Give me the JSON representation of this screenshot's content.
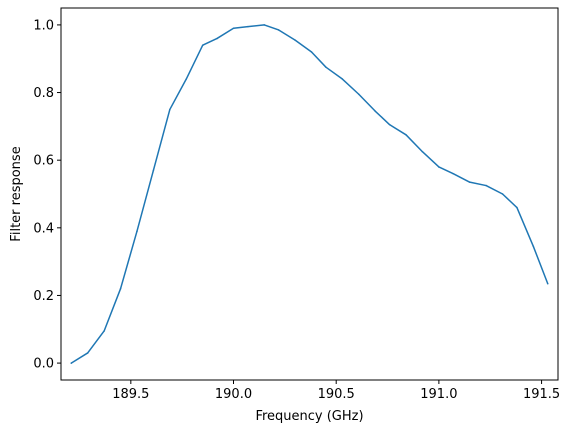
{
  "chart_data": {
    "type": "line",
    "title": "",
    "xlabel": "Frequency (GHz)",
    "ylabel": "Filter response",
    "xlim": [
      189.16,
      191.58
    ],
    "ylim": [
      -0.05,
      1.05
    ],
    "xticks": [
      189.5,
      190.0,
      190.5,
      191.0,
      191.5
    ],
    "xtick_labels": [
      "189.5",
      "190.0",
      "190.5",
      "191.0",
      "191.5"
    ],
    "yticks": [
      0.0,
      0.2,
      0.4,
      0.6,
      0.8,
      1.0
    ],
    "ytick_labels": [
      "0.0",
      "0.2",
      "0.4",
      "0.6",
      "0.8",
      "1.0"
    ],
    "grid": false,
    "series": [
      {
        "color": "#1f77b4",
        "x": [
          189.21,
          189.29,
          189.37,
          189.45,
          189.53,
          189.61,
          189.69,
          189.77,
          189.85,
          189.92,
          190.0,
          190.07,
          190.15,
          190.22,
          190.3,
          190.38,
          190.45,
          190.53,
          190.61,
          190.69,
          190.76,
          190.84,
          190.92,
          191.0,
          191.07,
          191.15,
          191.23,
          191.31,
          191.38,
          191.46,
          191.53
        ],
        "y": [
          0.0,
          0.03,
          0.095,
          0.22,
          0.39,
          0.57,
          0.75,
          0.84,
          0.94,
          0.96,
          0.99,
          0.995,
          1.0,
          0.985,
          0.955,
          0.92,
          0.875,
          0.84,
          0.795,
          0.745,
          0.705,
          0.675,
          0.625,
          0.58,
          0.56,
          0.535,
          0.525,
          0.5,
          0.46,
          0.345,
          0.235
        ]
      }
    ]
  }
}
